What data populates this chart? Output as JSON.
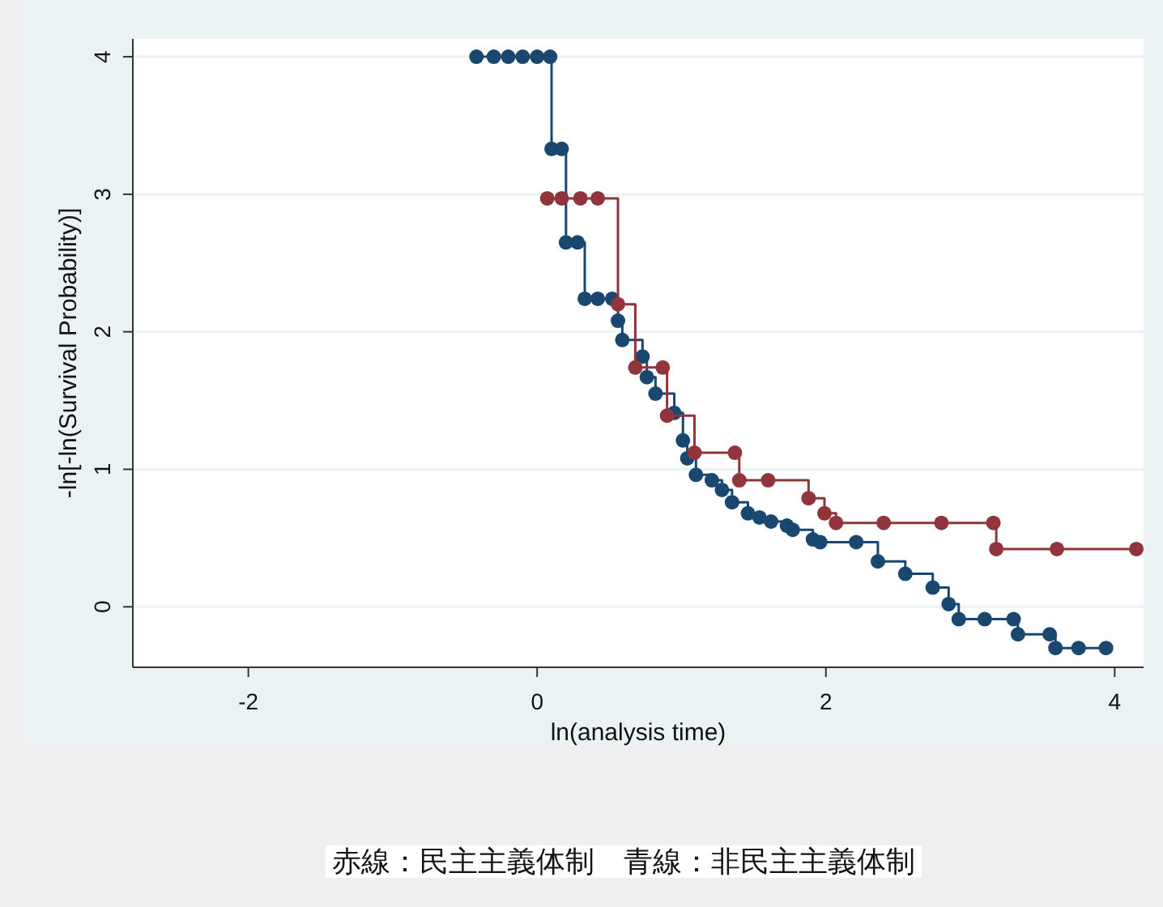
{
  "chart_data": {
    "type": "step",
    "xlabel": "ln(analysis time)",
    "ylabel": "-ln[-ln(Survival Probability)]",
    "xlim": [
      -2.8,
      4.2
    ],
    "ylim": [
      -0.44,
      4.13
    ],
    "xticks": [
      -2,
      0,
      2,
      4
    ],
    "yticks": [
      0,
      1,
      2,
      3,
      4
    ],
    "grid": "y",
    "marker": "circle",
    "line_style": "solid",
    "annotations": [
      "赤線：民主主義体制　青線：非民主主義体制"
    ],
    "series": [
      {
        "color": "#1a476f",
        "x": [
          -0.42,
          -0.3,
          -0.2,
          -0.1,
          0.0,
          0.09,
          0.1,
          0.17,
          0.2,
          0.28,
          0.33,
          0.42,
          0.52,
          0.56,
          0.59,
          0.73,
          0.76,
          0.82,
          0.95,
          1.01,
          1.04,
          1.1,
          1.21,
          1.28,
          1.35,
          1.46,
          1.54,
          1.62,
          1.73,
          1.77,
          1.91,
          1.96,
          2.21,
          2.36,
          2.55,
          2.74,
          2.85,
          2.92,
          3.1,
          3.3,
          3.33,
          3.55,
          3.59,
          3.75,
          3.94
        ],
        "values": [
          4,
          4,
          4,
          4,
          4,
          4,
          3.33,
          3.33,
          2.65,
          2.65,
          2.24,
          2.24,
          2.24,
          2.08,
          1.94,
          1.82,
          1.67,
          1.55,
          1.41,
          1.21,
          1.08,
          0.96,
          0.92,
          0.85,
          0.76,
          0.68,
          0.65,
          0.62,
          0.59,
          0.56,
          0.49,
          0.47,
          0.47,
          0.33,
          0.24,
          0.14,
          0.02,
          -0.09,
          -0.09,
          -0.09,
          -0.2,
          -0.2,
          -0.3,
          -0.3,
          -0.3
        ]
      },
      {
        "color": "#90353b",
        "x": [
          0.07,
          0.17,
          0.3,
          0.42,
          0.56,
          0.68,
          0.87,
          0.9,
          1.09,
          1.37,
          1.4,
          1.6,
          1.88,
          1.99,
          2.07,
          2.4,
          2.8,
          3.16,
          3.18,
          3.6,
          4.15
        ],
        "values": [
          2.97,
          2.97,
          2.97,
          2.97,
          2.2,
          1.74,
          1.74,
          1.39,
          1.12,
          1.12,
          0.92,
          0.92,
          0.79,
          0.68,
          0.61,
          0.61,
          0.61,
          0.61,
          0.42,
          0.42,
          0.42
        ]
      }
    ]
  }
}
